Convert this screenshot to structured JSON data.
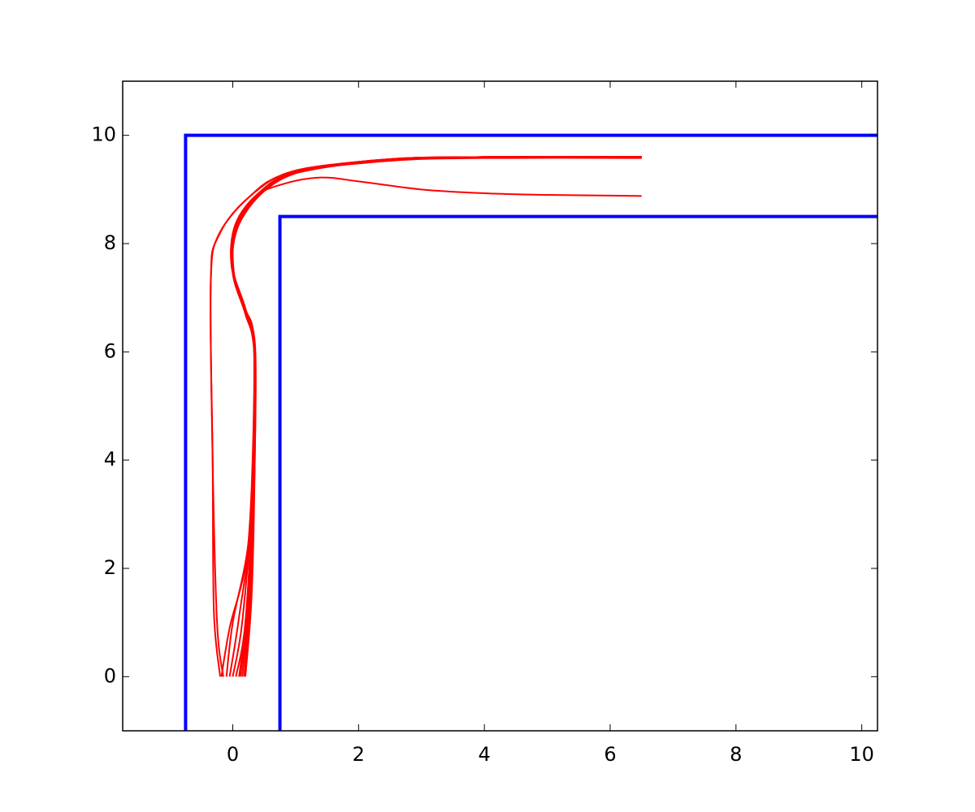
{
  "chart_data": {
    "type": "line",
    "title": "",
    "xlabel": "",
    "ylabel": "",
    "xlim": [
      -1.75,
      10.25
    ],
    "ylim": [
      -1,
      11
    ],
    "grid": false,
    "xticks": [
      0,
      2,
      4,
      6,
      8,
      10
    ],
    "yticks": [
      0,
      2,
      4,
      6,
      8,
      10
    ],
    "xtick_labels": [
      "0",
      "2",
      "4",
      "6",
      "8",
      "10"
    ],
    "ytick_labels": [
      "0",
      "2",
      "4",
      "6",
      "8",
      "10"
    ],
    "walls": {
      "color": "#0000ff",
      "lines": [
        {
          "id": "outer-wall",
          "points": [
            [
              -0.75,
              -1
            ],
            [
              -0.75,
              10
            ],
            [
              10.25,
              10
            ]
          ]
        },
        {
          "id": "inner-wall",
          "points": [
            [
              0.75,
              -1
            ],
            [
              0.75,
              8.5
            ],
            [
              10.25,
              8.5
            ]
          ]
        }
      ]
    },
    "trajectories": {
      "color": "#ff0000",
      "series": [
        {
          "id": "t1",
          "points": [
            [
              -0.2,
              0
            ],
            [
              -0.3,
              1.2
            ],
            [
              -0.32,
              4
            ],
            [
              -0.35,
              7.3
            ],
            [
              -0.2,
              8.2
            ],
            [
              0.3,
              8.9
            ],
            [
              1.0,
              9.35
            ],
            [
              2.5,
              9.55
            ],
            [
              4.0,
              9.6
            ],
            [
              6.5,
              9.6
            ]
          ]
        },
        {
          "id": "t2",
          "points": [
            [
              -0.15,
              0
            ],
            [
              -0.25,
              1.0
            ],
            [
              -0.32,
              4
            ],
            [
              -0.35,
              7.2
            ],
            [
              -0.25,
              8.1
            ],
            [
              0.25,
              8.85
            ],
            [
              0.9,
              9.3
            ],
            [
              2.5,
              9.53
            ],
            [
              4.0,
              9.58
            ],
            [
              6.5,
              9.58
            ]
          ]
        },
        {
          "id": "t3",
          "points": [
            [
              0.2,
              0
            ],
            [
              0.3,
              1.5
            ],
            [
              0.35,
              4
            ],
            [
              0.35,
              6.0
            ],
            [
              0.2,
              6.8
            ],
            [
              0.0,
              7.5
            ],
            [
              0.05,
              8.3
            ],
            [
              0.4,
              8.9
            ],
            [
              1.0,
              9.3
            ],
            [
              2.5,
              9.55
            ],
            [
              4.0,
              9.6
            ],
            [
              6.5,
              9.6
            ]
          ]
        },
        {
          "id": "t4",
          "points": [
            [
              0.15,
              0
            ],
            [
              0.25,
              1.3
            ],
            [
              0.33,
              4
            ],
            [
              0.34,
              6.0
            ],
            [
              0.18,
              6.8
            ],
            [
              -0.02,
              7.6
            ],
            [
              0.05,
              8.35
            ],
            [
              0.4,
              8.92
            ],
            [
              1.0,
              9.32
            ],
            [
              2.5,
              9.54
            ],
            [
              4.0,
              9.59
            ],
            [
              6.5,
              9.59
            ]
          ]
        },
        {
          "id": "t5",
          "points": [
            [
              0.1,
              0
            ],
            [
              0.22,
              1.2
            ],
            [
              0.33,
              3.8
            ],
            [
              0.35,
              6.0
            ],
            [
              0.2,
              6.75
            ],
            [
              0.0,
              7.5
            ],
            [
              0.04,
              8.3
            ],
            [
              0.45,
              8.95
            ],
            [
              1.1,
              9.35
            ],
            [
              2.5,
              9.56
            ],
            [
              4.0,
              9.6
            ],
            [
              6.5,
              9.6
            ]
          ]
        },
        {
          "id": "t6",
          "points": [
            [
              0.05,
              0
            ],
            [
              0.2,
              1.0
            ],
            [
              0.32,
              3.5
            ],
            [
              0.36,
              6.0
            ],
            [
              0.22,
              6.7
            ],
            [
              0.02,
              7.45
            ],
            [
              0.06,
              8.25
            ],
            [
              0.5,
              8.97
            ],
            [
              1.2,
              9.37
            ],
            [
              2.5,
              9.56
            ],
            [
              4.0,
              9.6
            ],
            [
              6.5,
              9.6
            ]
          ]
        },
        {
          "id": "t7",
          "points": [
            [
              0.0,
              0
            ],
            [
              0.15,
              1.0
            ],
            [
              0.3,
              3.2
            ],
            [
              0.35,
              6.0
            ],
            [
              0.2,
              6.8
            ],
            [
              0.0,
              7.55
            ],
            [
              0.05,
              8.3
            ],
            [
              0.42,
              8.93
            ],
            [
              1.05,
              9.33
            ],
            [
              2.5,
              9.55
            ],
            [
              4.0,
              9.6
            ],
            [
              6.5,
              9.6
            ]
          ]
        },
        {
          "id": "t8",
          "points": [
            [
              -0.05,
              0
            ],
            [
              0.1,
              1.1
            ],
            [
              0.3,
              3.0
            ],
            [
              0.34,
              6.0
            ],
            [
              0.18,
              6.85
            ],
            [
              -0.02,
              7.6
            ],
            [
              0.04,
              8.35
            ],
            [
              0.4,
              8.92
            ],
            [
              1.0,
              9.32
            ],
            [
              2.5,
              9.54
            ],
            [
              4.0,
              9.59
            ],
            [
              6.5,
              9.59
            ]
          ]
        },
        {
          "id": "t9",
          "points": [
            [
              -0.1,
              0
            ],
            [
              0.0,
              1.0
            ],
            [
              0.28,
              2.8
            ],
            [
              0.35,
              6.0
            ],
            [
              0.2,
              6.75
            ],
            [
              0.0,
              7.5
            ],
            [
              0.05,
              8.28
            ],
            [
              0.45,
              8.95
            ],
            [
              1.1,
              9.34
            ],
            [
              2.5,
              9.55
            ],
            [
              4.0,
              9.6
            ],
            [
              6.5,
              9.6
            ]
          ]
        },
        {
          "id": "t10",
          "points": [
            [
              0.12,
              0
            ],
            [
              0.25,
              1.4
            ],
            [
              0.34,
              4.2
            ],
            [
              0.35,
              6.1
            ],
            [
              0.19,
              6.8
            ],
            [
              -0.01,
              7.55
            ],
            [
              0.05,
              8.32
            ],
            [
              0.43,
              8.94
            ],
            [
              1.05,
              9.34
            ],
            [
              2.5,
              9.55
            ],
            [
              4.0,
              9.6
            ],
            [
              6.5,
              9.6
            ]
          ]
        },
        {
          "id": "t11",
          "points": [
            [
              -0.18,
              0
            ],
            [
              -0.05,
              0.9
            ],
            [
              0.25,
              2.5
            ],
            [
              0.34,
              6.0
            ],
            [
              0.2,
              6.8
            ],
            [
              0.0,
              7.5
            ],
            [
              0.05,
              8.3
            ],
            [
              0.45,
              8.95
            ],
            [
              1.1,
              9.35
            ],
            [
              2.5,
              9.56
            ],
            [
              4.0,
              9.6
            ],
            [
              6.5,
              9.6
            ]
          ]
        },
        {
          "id": "t12",
          "points": [
            [
              0.18,
              0
            ],
            [
              0.28,
              1.5
            ],
            [
              0.35,
              4.0
            ],
            [
              0.35,
              6.0
            ],
            [
              0.2,
              6.7
            ],
            [
              0.0,
              7.45
            ],
            [
              0.05,
              8.2
            ],
            [
              0.35,
              8.85
            ],
            [
              0.8,
              9.1
            ],
            [
              1.4,
              9.22
            ],
            [
              2.0,
              9.15
            ],
            [
              3.0,
              9.0
            ],
            [
              4.0,
              8.93
            ],
            [
              5.0,
              8.9
            ],
            [
              6.5,
              8.88
            ]
          ]
        }
      ]
    }
  }
}
